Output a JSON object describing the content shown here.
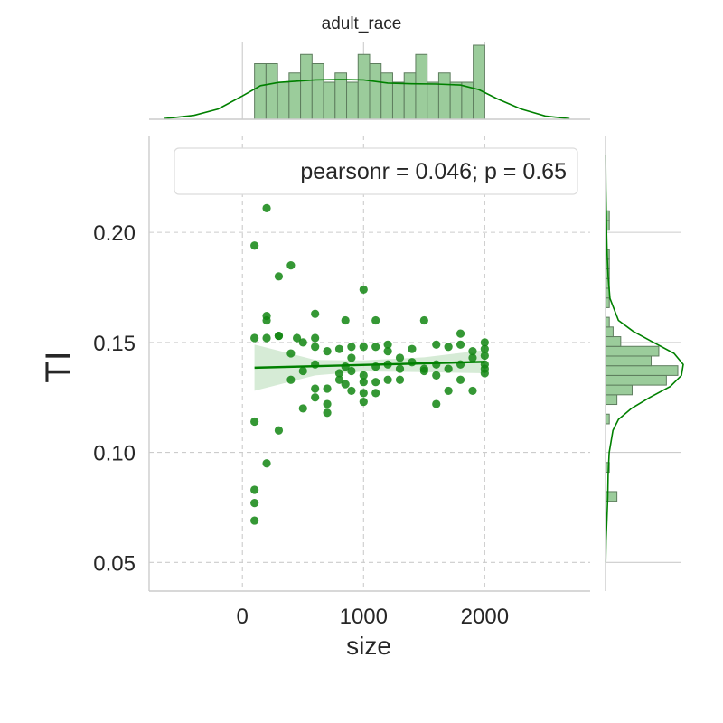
{
  "chart_data": {
    "type": "scatter",
    "title": "adult_race",
    "xlabel": "size",
    "ylabel": "TI",
    "xlim": [
      -770,
      2870
    ],
    "ylim": [
      0.037,
      0.244
    ],
    "xticks": [
      0,
      1000,
      2000
    ],
    "xtick_labels": [
      "0",
      "1000",
      "2000"
    ],
    "yticks": [
      0.05,
      0.1,
      0.15,
      0.2
    ],
    "ytick_labels": [
      "0.05",
      "0.10",
      "0.15",
      "0.20"
    ],
    "grid": true,
    "legend": {
      "text": "pearsonr = 0.046; p = 0.65",
      "placement": "top-right"
    },
    "colors": {
      "points": "#128612",
      "line": "#008000",
      "band": "#cfe8cf",
      "hist_fill": "#9bcc9b",
      "hist_edge": "#5e7d5e",
      "kde": "#008000",
      "grid": "#cccccc",
      "spine": "#cccccc"
    },
    "points": [
      {
        "x": 100,
        "y": 0.194
      },
      {
        "x": 100,
        "y": 0.152
      },
      {
        "x": 100,
        "y": 0.114
      },
      {
        "x": 100,
        "y": 0.083
      },
      {
        "x": 100,
        "y": 0.077
      },
      {
        "x": 100,
        "y": 0.069
      },
      {
        "x": 200,
        "y": 0.211
      },
      {
        "x": 200,
        "y": 0.162
      },
      {
        "x": 200,
        "y": 0.16
      },
      {
        "x": 200,
        "y": 0.152
      },
      {
        "x": 200,
        "y": 0.095
      },
      {
        "x": 300,
        "y": 0.18
      },
      {
        "x": 300,
        "y": 0.153
      },
      {
        "x": 300,
        "y": 0.153
      },
      {
        "x": 300,
        "y": 0.11
      },
      {
        "x": 400,
        "y": 0.185
      },
      {
        "x": 400,
        "y": 0.145
      },
      {
        "x": 400,
        "y": 0.133
      },
      {
        "x": 450,
        "y": 0.152
      },
      {
        "x": 500,
        "y": 0.15
      },
      {
        "x": 500,
        "y": 0.137
      },
      {
        "x": 500,
        "y": 0.12
      },
      {
        "x": 600,
        "y": 0.163
      },
      {
        "x": 600,
        "y": 0.152
      },
      {
        "x": 600,
        "y": 0.148
      },
      {
        "x": 600,
        "y": 0.14
      },
      {
        "x": 600,
        "y": 0.129
      },
      {
        "x": 600,
        "y": 0.125
      },
      {
        "x": 700,
        "y": 0.146
      },
      {
        "x": 700,
        "y": 0.129
      },
      {
        "x": 700,
        "y": 0.118
      },
      {
        "x": 700,
        "y": 0.122
      },
      {
        "x": 800,
        "y": 0.147
      },
      {
        "x": 800,
        "y": 0.136
      },
      {
        "x": 800,
        "y": 0.133
      },
      {
        "x": 850,
        "y": 0.16
      },
      {
        "x": 850,
        "y": 0.139
      },
      {
        "x": 850,
        "y": 0.131
      },
      {
        "x": 900,
        "y": 0.148
      },
      {
        "x": 900,
        "y": 0.143
      },
      {
        "x": 900,
        "y": 0.137
      },
      {
        "x": 900,
        "y": 0.128
      },
      {
        "x": 1000,
        "y": 0.174
      },
      {
        "x": 1000,
        "y": 0.148
      },
      {
        "x": 1000,
        "y": 0.135
      },
      {
        "x": 1000,
        "y": 0.132
      },
      {
        "x": 1000,
        "y": 0.127
      },
      {
        "x": 1000,
        "y": 0.123
      },
      {
        "x": 1100,
        "y": 0.16
      },
      {
        "x": 1100,
        "y": 0.148
      },
      {
        "x": 1100,
        "y": 0.139
      },
      {
        "x": 1100,
        "y": 0.132
      },
      {
        "x": 1100,
        "y": 0.127
      },
      {
        "x": 1200,
        "y": 0.149
      },
      {
        "x": 1200,
        "y": 0.146
      },
      {
        "x": 1200,
        "y": 0.14
      },
      {
        "x": 1200,
        "y": 0.133
      },
      {
        "x": 1300,
        "y": 0.143
      },
      {
        "x": 1300,
        "y": 0.138
      },
      {
        "x": 1300,
        "y": 0.133
      },
      {
        "x": 1400,
        "y": 0.147
      },
      {
        "x": 1400,
        "y": 0.141
      },
      {
        "x": 1500,
        "y": 0.16
      },
      {
        "x": 1500,
        "y": 0.138
      },
      {
        "x": 1500,
        "y": 0.137
      },
      {
        "x": 1600,
        "y": 0.149
      },
      {
        "x": 1600,
        "y": 0.14
      },
      {
        "x": 1600,
        "y": 0.135
      },
      {
        "x": 1600,
        "y": 0.122
      },
      {
        "x": 1700,
        "y": 0.148
      },
      {
        "x": 1700,
        "y": 0.138
      },
      {
        "x": 1700,
        "y": 0.128
      },
      {
        "x": 1800,
        "y": 0.154
      },
      {
        "x": 1800,
        "y": 0.149
      },
      {
        "x": 1800,
        "y": 0.14
      },
      {
        "x": 1800,
        "y": 0.133
      },
      {
        "x": 1900,
        "y": 0.146
      },
      {
        "x": 1900,
        "y": 0.143
      },
      {
        "x": 1900,
        "y": 0.128
      },
      {
        "x": 2000,
        "y": 0.15
      },
      {
        "x": 2000,
        "y": 0.147
      },
      {
        "x": 2000,
        "y": 0.144
      },
      {
        "x": 2000,
        "y": 0.14
      },
      {
        "x": 2000,
        "y": 0.138
      },
      {
        "x": 2000,
        "y": 0.136
      }
    ],
    "regression": {
      "x": [
        100,
        2000
      ],
      "y": [
        0.1385,
        0.1412
      ],
      "ci_band": [
        {
          "x": 100,
          "lo": 0.128,
          "hi": 0.149
        },
        {
          "x": 600,
          "lo": 0.135,
          "hi": 0.142
        },
        {
          "x": 1000,
          "lo": 0.1368,
          "hi": 0.1418
        },
        {
          "x": 1500,
          "lo": 0.1365,
          "hi": 0.1432
        },
        {
          "x": 2000,
          "lo": 0.136,
          "hi": 0.1465
        }
      ]
    },
    "marginal_x_hist": {
      "bin_edges": [
        100,
        195,
        290,
        385,
        480,
        575,
        670,
        765,
        860,
        955,
        1050,
        1145,
        1240,
        1335,
        1430,
        1525,
        1620,
        1715,
        1810,
        1905,
        2000
      ],
      "counts": [
        6,
        6,
        4,
        5,
        7,
        6,
        4,
        5,
        4,
        7,
        6,
        5,
        4,
        5,
        7,
        4,
        5,
        4,
        4,
        8
      ]
    },
    "marginal_x_kde": {
      "x": [
        -650,
        -400,
        -200,
        0,
        150,
        300,
        450,
        600,
        800,
        1000,
        1200,
        1400,
        1600,
        1800,
        1950,
        2100,
        2300,
        2500,
        2700
      ],
      "density": [
        0.1,
        0.6,
        1.6,
        3.6,
        5.2,
        5.7,
        5.9,
        6.1,
        6.15,
        6.1,
        5.6,
        5.5,
        5.45,
        5.3,
        4.6,
        3.2,
        1.6,
        0.5,
        0.1
      ]
    },
    "marginal_y_hist": {
      "bin_edges": [
        0.069,
        0.0734,
        0.0778,
        0.0822,
        0.0866,
        0.091,
        0.0954,
        0.0998,
        0.1042,
        0.1086,
        0.113,
        0.1174,
        0.1218,
        0.1262,
        0.1306,
        0.135,
        0.1394,
        0.1438,
        0.1482,
        0.1526,
        0.157,
        0.1614,
        0.1658,
        0.1702,
        0.1746,
        0.179,
        0.1834,
        0.1878,
        0.1922,
        0.1966,
        0.201,
        0.2054,
        0.2098
      ],
      "counts": [
        0,
        0,
        3,
        0,
        0,
        1,
        0,
        0,
        0,
        0,
        1,
        0,
        3,
        7,
        16,
        19,
        12,
        14,
        4,
        2,
        1,
        0,
        1,
        1,
        1,
        1,
        1,
        1,
        0,
        0,
        1,
        1
      ]
    },
    "marginal_y_kde": {
      "y": [
        0.05,
        0.06,
        0.07,
        0.08,
        0.09,
        0.1,
        0.11,
        0.115,
        0.12,
        0.125,
        0.13,
        0.135,
        0.14,
        0.145,
        0.15,
        0.155,
        0.16,
        0.17,
        0.18,
        0.19,
        0.2,
        0.21,
        0.22,
        0.235
      ],
      "density": [
        0.05,
        0.15,
        0.4,
        0.6,
        0.7,
        1.0,
        2.0,
        3.5,
        7.0,
        12.0,
        17.5,
        20.5,
        21.0,
        18.5,
        13.0,
        7.5,
        3.5,
        1.2,
        0.7,
        0.45,
        0.3,
        0.2,
        0.1,
        0.03
      ]
    }
  }
}
